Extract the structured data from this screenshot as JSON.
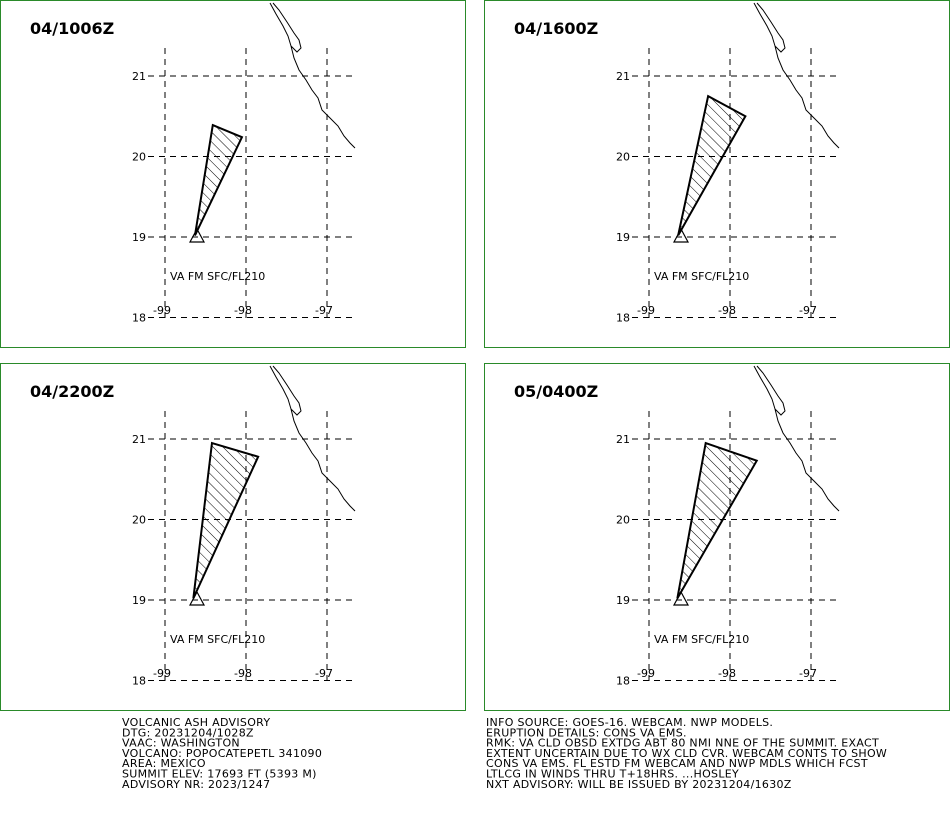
{
  "panels": [
    {
      "title": "04/1006Z",
      "label": "VA FM SFC/FL210",
      "polygon": {
        "lat": [
          20.39,
          20.24,
          19.02
        ],
        "lon": [
          -98.41,
          -98.05,
          -98.63
        ]
      }
    },
    {
      "title": "04/1600Z",
      "label": "VA FM SFC/FL210",
      "polygon": {
        "lat": [
          20.75,
          20.5,
          19.02
        ],
        "lon": [
          -98.27,
          -97.81,
          -98.64
        ]
      }
    },
    {
      "title": "04/2200Z",
      "label": "VA FM SFC/FL210",
      "polygon": {
        "lat": [
          20.95,
          20.78,
          19.02
        ],
        "lon": [
          -98.42,
          -97.85,
          -98.65
        ]
      }
    },
    {
      "title": "05/0400Z",
      "label": "VA FM SFC/FL210",
      "polygon": {
        "lat": [
          20.95,
          20.73,
          19.02
        ],
        "lon": [
          -98.3,
          -97.67,
          -98.65
        ]
      }
    }
  ],
  "grid": {
    "lat_ticks": [
      21,
      20,
      19,
      18
    ],
    "lon_ticks": [
      -99,
      -98,
      -97
    ]
  },
  "advisory_left": [
    "VOLCANIC ASH ADVISORY",
    "DTG: 20231204/1028Z",
    "VAAC: WASHINGTON",
    "VOLCANO: POPOCATEPETL 341090",
    "AREA: MEXICO",
    "SUMMIT ELEV: 17693 FT (5393 M)",
    "ADVISORY NR: 2023/1247"
  ],
  "advisory_right": [
    "INFO SOURCE: GOES-16. WEBCAM. NWP MODELS.",
    "ERUPTION DETAILS: CONS VA EMS.",
    "RMK: VA CLD OBSD EXTDG ABT 80 NMI NNE OF THE SUMMIT. EXACT",
    "EXTENT UNCERTAIN DUE TO WX CLD CVR. WEBCAM CONTS TO SHOW",
    "CONS VA EMS. FL ESTD FM WEBCAM AND NWP MDLS WHICH FCST",
    "LTLCG IN WINDS THRU T+18HRS. ...HOSLEY",
    "NXT ADVISORY: WILL BE ISSUED BY 20231204/1630Z"
  ]
}
